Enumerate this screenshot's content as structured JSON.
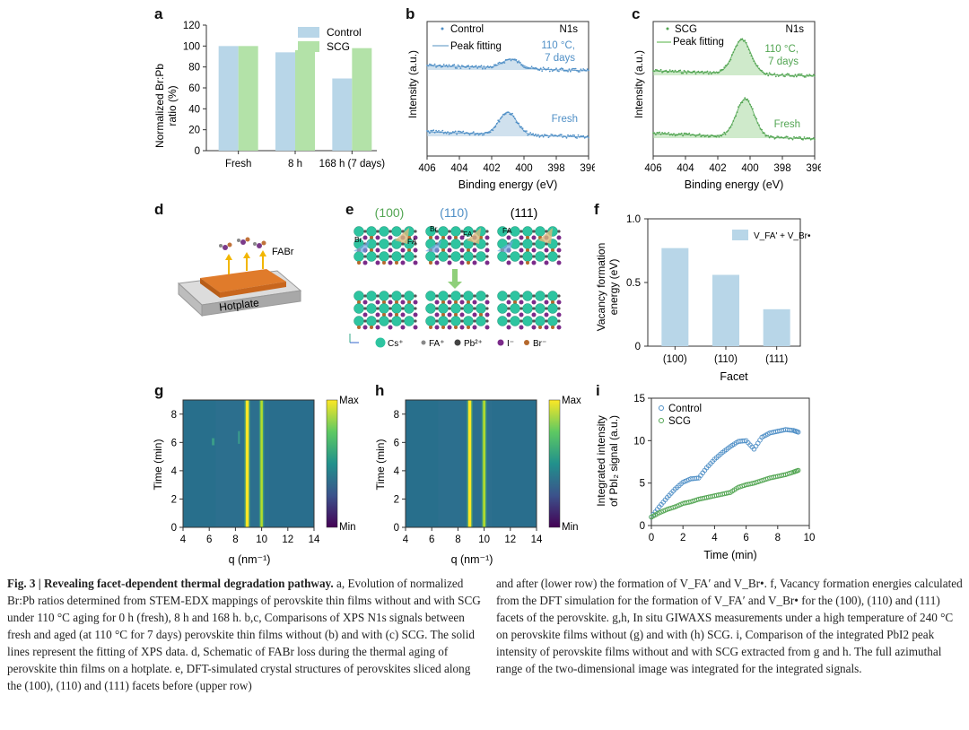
{
  "panels": {
    "a": "a",
    "b": "b",
    "c": "c",
    "d": "d",
    "e": "e",
    "f": "f",
    "g": "g",
    "h": "h",
    "i": "i"
  },
  "colors": {
    "control": "#4f8fc6",
    "scg": "#52a552",
    "control_bar": "#b8d6e8",
    "scg_bar": "#b3e2a8",
    "vac_bar": "#b8d6e8"
  },
  "panel_a": {
    "ylabel_line1": "Normalized Br:Pb",
    "ylabel_line2": "ratio (%)",
    "legend_control": "Control",
    "legend_scg": "SCG"
  },
  "panel_b": {
    "legend_data": "Control",
    "legend_fit": "Peak fitting",
    "signal": "N1s",
    "aged_line1": "110 °C,",
    "aged_line2": "7 days",
    "fresh": "Fresh",
    "xlabel": "Binding energy (eV)",
    "ylabel": "Intensity (a.u.)"
  },
  "panel_c": {
    "legend_data": "SCG",
    "legend_fit": "Peak fitting",
    "signal": "N1s",
    "aged_line1": "110 °C,",
    "aged_line2": "7 days",
    "fresh": "Fresh",
    "xlabel": "Binding energy (eV)",
    "ylabel": "Intensity (a.u.)"
  },
  "panel_d": {
    "fabr": "FABr",
    "hotplate": "Hotplate"
  },
  "panel_e": {
    "facet_100": "(100)",
    "facet_110": "(110)",
    "facet_111": "(111)",
    "label_br": "Br",
    "label_fa": "FA",
    "legend_cs": "Cs⁺",
    "legend_fa": "FA⁺",
    "legend_pb": "Pb²⁺",
    "legend_i": "I⁻",
    "legend_br": "Br⁻"
  },
  "panel_f": {
    "ylabel_line1": "Vacancy formation",
    "ylabel_line2": "energy (eV)",
    "xlabel": "Facet",
    "legend": "V_FA' + V_Br•"
  },
  "panel_g": {
    "xlabel": "q (nm⁻¹)",
    "ylabel": "Time (min)",
    "cb_max": "Max",
    "cb_min": "Min"
  },
  "panel_h": {
    "xlabel": "q (nm⁻¹)",
    "ylabel": "Time (min)",
    "cb_max": "Max",
    "cb_min": "Min"
  },
  "panel_i": {
    "ylabel_line1": "Integrated intensity",
    "ylabel_line2": "of PbI₂ signal (a.u.)",
    "xlabel": "Time (min)",
    "legend_control": "Control",
    "legend_scg": "SCG"
  },
  "chart_data": [
    {
      "panel": "a",
      "type": "bar",
      "categories": [
        "Fresh",
        "8 h",
        "168 h (7 days)"
      ],
      "series": [
        {
          "name": "Control",
          "values": [
            100,
            94,
            69
          ]
        },
        {
          "name": "SCG",
          "values": [
            100,
            96,
            98
          ]
        }
      ],
      "ylabel": "Normalized Br:Pb ratio (%)",
      "ylim": [
        0,
        120
      ],
      "yticks": [
        0,
        20,
        40,
        60,
        80,
        100,
        120
      ]
    },
    {
      "panel": "b",
      "type": "line",
      "xlabel": "Binding energy (eV)",
      "ylabel": "Intensity (a.u.)",
      "xlim": [
        406,
        396
      ],
      "xticks": [
        406,
        404,
        402,
        400,
        398,
        396
      ],
      "series": [
        {
          "name": "Control",
          "label": "110 °C, 7 days",
          "peak_center": 400.8,
          "peak_height": 0.25
        },
        {
          "name": "Control",
          "label": "Fresh",
          "peak_center": 401.0,
          "peak_height": 0.62
        }
      ]
    },
    {
      "panel": "c",
      "type": "line",
      "xlabel": "Binding energy (eV)",
      "ylabel": "Intensity (a.u.)",
      "xlim": [
        406,
        396
      ],
      "xticks": [
        406,
        404,
        402,
        400,
        398,
        396
      ],
      "series": [
        {
          "name": "SCG",
          "label": "110 °C, 7 days",
          "peak_center": 400.5,
          "peak_height": 0.95
        },
        {
          "name": "SCG",
          "label": "Fresh",
          "peak_center": 400.3,
          "peak_height": 1.05
        }
      ]
    },
    {
      "panel": "f",
      "type": "bar",
      "categories": [
        "(100)",
        "(110)",
        "(111)"
      ],
      "values": [
        0.77,
        0.56,
        0.29
      ],
      "ylabel": "Vacancy formation energy (eV)",
      "xlabel": "Facet",
      "ylim": [
        0,
        1.0
      ],
      "yticks": [
        0,
        0.5,
        1.0
      ]
    },
    {
      "panel": "g",
      "type": "heatmap",
      "xlabel": "q (nm⁻¹)",
      "ylabel": "Time (min)",
      "xlim": [
        4,
        14
      ],
      "ylim": [
        0,
        9
      ],
      "xticks": [
        4,
        6,
        8,
        10,
        12,
        14
      ],
      "yticks": [
        0,
        2,
        4,
        6,
        8
      ],
      "bright_lines_q": [
        8.9,
        10.0
      ],
      "weak_feature_q": 6.3,
      "colorbar": [
        "Min",
        "Max"
      ]
    },
    {
      "panel": "h",
      "type": "heatmap",
      "xlabel": "q (nm⁻¹)",
      "ylabel": "Time (min)",
      "xlim": [
        4,
        14
      ],
      "ylim": [
        0,
        9
      ],
      "xticks": [
        4,
        6,
        8,
        10,
        12,
        14
      ],
      "yticks": [
        0,
        2,
        4,
        6,
        8
      ],
      "bright_lines_q": [
        8.9,
        10.0
      ],
      "colorbar": [
        "Min",
        "Max"
      ]
    },
    {
      "panel": "i",
      "type": "scatter",
      "xlabel": "Time (min)",
      "ylabel": "Integrated intensity of PbI2 signal (a.u.)",
      "xlim": [
        0,
        10
      ],
      "ylim": [
        0,
        15
      ],
      "xticks": [
        0,
        2,
        4,
        6,
        8,
        10
      ],
      "yticks": [
        0,
        5,
        10,
        15
      ],
      "series": [
        {
          "name": "Control",
          "x": [
            0,
            0.5,
            1,
            1.5,
            2,
            2.5,
            3,
            3.5,
            4,
            4.5,
            5,
            5.5,
            6,
            6.5,
            7,
            7.5,
            8,
            8.5,
            9,
            9.3
          ],
          "y": [
            1.0,
            2.2,
            3.3,
            4.3,
            5.1,
            5.5,
            5.6,
            6.8,
            7.8,
            8.6,
            9.3,
            9.9,
            10.0,
            9.0,
            10.4,
            10.9,
            11.1,
            11.3,
            11.2,
            11.0
          ]
        },
        {
          "name": "SCG",
          "x": [
            0,
            0.5,
            1,
            1.5,
            2,
            2.5,
            3,
            3.5,
            4,
            4.5,
            5,
            5.5,
            6,
            6.5,
            7,
            7.5,
            8,
            8.5,
            9,
            9.3
          ],
          "y": [
            1.0,
            1.5,
            1.9,
            2.2,
            2.6,
            2.8,
            3.1,
            3.3,
            3.5,
            3.7,
            3.9,
            4.5,
            4.8,
            5.0,
            5.3,
            5.6,
            5.8,
            6.0,
            6.3,
            6.5
          ]
        }
      ]
    }
  ],
  "caption": {
    "title": "Fig. 3 | Revealing facet-dependent thermal degradation pathway.",
    "left": " a, Evolution of normalized Br:Pb ratios determined from STEM-EDX mappings of perovskite thin films without and with SCG under 110 °C aging for 0 h (fresh), 8 h and 168 h. b,c, Comparisons of XPS N1s signals between fresh and aged (at 110 °C for 7 days) perovskite thin films without (b) and with (c) SCG. The solid lines represent the fitting of XPS data. d, Schematic of FABr loss during the thermal aging of perovskite thin films on a hotplate. e, DFT-simulated crystal structures of perovskites sliced along the (100), (110) and (111) facets before (upper row)",
    "right": "and after (lower row) the formation of V_FA′ and V_Br•. f, Vacancy formation energies calculated from the DFT simulation for the formation of V_FA′ and V_Br• for the (100), (110) and (111) facets of the perovskite. g,h, In situ GIWAXS measurements under a high temperature of 240 °C on perovskite films without (g) and with (h) SCG. i, Comparison of the integrated PbI2 peak intensity of perovskite films without and with SCG extracted from g and h. The full azimuthal range of the two-dimensional image was integrated for the integrated signals."
  }
}
